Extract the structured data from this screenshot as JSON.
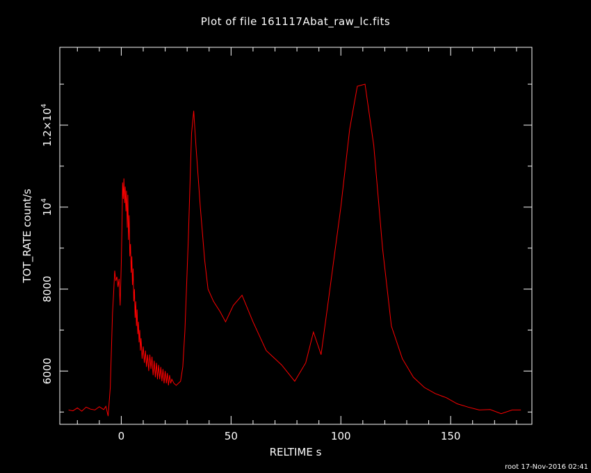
{
  "title": "Plot of file 161117Abat_raw_lc.fits",
  "footer": "root 17-Nov-2016 02:41",
  "colors": {
    "background": "#000000",
    "axes": "#ffffff",
    "series": "#ff0000"
  },
  "chart_data": {
    "type": "line",
    "xlabel": "RELTIME  s",
    "ylabel": "TOT_RATE  count/s",
    "xlim": [
      -28,
      187
    ],
    "ylim": [
      4700,
      13900
    ],
    "xticks": [
      {
        "value": 0,
        "label": "0"
      },
      {
        "value": 50,
        "label": "50"
      },
      {
        "value": 100,
        "label": "100"
      },
      {
        "value": 150,
        "label": "150"
      }
    ],
    "yticks": [
      {
        "value": 6000,
        "label": "6000",
        "exp": ""
      },
      {
        "value": 8000,
        "label": "8000",
        "exp": ""
      },
      {
        "value": 10000,
        "label": "10",
        "exp": "4"
      },
      {
        "value": 12000,
        "label": "1.2×10",
        "exp": "4"
      }
    ],
    "x_minor_step": 10,
    "y_minor_step": 1000,
    "series": [
      {
        "points": [
          [
            -24,
            5050
          ],
          [
            -22,
            5030
          ],
          [
            -20,
            5100
          ],
          [
            -18,
            5020
          ],
          [
            -16,
            5120
          ],
          [
            -14,
            5070
          ],
          [
            -12,
            5050
          ],
          [
            -10,
            5130
          ],
          [
            -8,
            5060
          ],
          [
            -7,
            5140
          ],
          [
            -6,
            4900
          ],
          [
            -5,
            5600
          ],
          [
            -4,
            7400
          ],
          [
            -3.5,
            7900
          ],
          [
            -3,
            8450
          ],
          [
            -2.5,
            8200
          ],
          [
            -2,
            8300
          ],
          [
            -1.5,
            8050
          ],
          [
            -1,
            8250
          ],
          [
            -0.5,
            7600
          ],
          [
            0,
            8600
          ],
          [
            0.3,
            9500
          ],
          [
            0.6,
            10600
          ],
          [
            0.9,
            10200
          ],
          [
            1.2,
            10700
          ],
          [
            1.5,
            10100
          ],
          [
            1.8,
            10500
          ],
          [
            2.1,
            9900
          ],
          [
            2.4,
            10400
          ],
          [
            2.7,
            9500
          ],
          [
            3.0,
            10300
          ],
          [
            3.3,
            9200
          ],
          [
            3.6,
            9800
          ],
          [
            3.9,
            8800
          ],
          [
            4.2,
            9100
          ],
          [
            4.5,
            8400
          ],
          [
            4.8,
            8800
          ],
          [
            5.1,
            8100
          ],
          [
            5.4,
            8500
          ],
          [
            5.7,
            7700
          ],
          [
            6.0,
            8000
          ],
          [
            6.3,
            7300
          ],
          [
            6.6,
            7700
          ],
          [
            6.9,
            7100
          ],
          [
            7.2,
            7500
          ],
          [
            7.5,
            6900
          ],
          [
            7.8,
            7200
          ],
          [
            8.1,
            6700
          ],
          [
            8.4,
            7000
          ],
          [
            8.7,
            6500
          ],
          [
            9.0,
            6800
          ],
          [
            9.5,
            6300
          ],
          [
            10.0,
            6600
          ],
          [
            10.5,
            6200
          ],
          [
            11.0,
            6500
          ],
          [
            11.5,
            6100
          ],
          [
            12.0,
            6400
          ],
          [
            12.5,
            6000
          ],
          [
            13.0,
            6400
          ],
          [
            13.5,
            6050
          ],
          [
            14.0,
            6350
          ],
          [
            14.5,
            5900
          ],
          [
            15.0,
            6250
          ],
          [
            15.5,
            5850
          ],
          [
            16.0,
            6200
          ],
          [
            16.5,
            5800
          ],
          [
            17.0,
            6150
          ],
          [
            17.5,
            5800
          ],
          [
            18.0,
            6100
          ],
          [
            18.5,
            5750
          ],
          [
            19.0,
            6050
          ],
          [
            19.5,
            5700
          ],
          [
            20.0,
            6000
          ],
          [
            20.5,
            5700
          ],
          [
            21.0,
            5950
          ],
          [
            21.5,
            5650
          ],
          [
            22.0,
            5900
          ],
          [
            22.5,
            5700
          ],
          [
            23.0,
            5800
          ],
          [
            24.0,
            5700
          ],
          [
            25.0,
            5650
          ],
          [
            26.0,
            5700
          ],
          [
            27.0,
            5750
          ],
          [
            28.0,
            6100
          ],
          [
            29.0,
            7000
          ],
          [
            30.5,
            9200
          ],
          [
            32.0,
            11800
          ],
          [
            33.0,
            12350
          ],
          [
            34.0,
            11500
          ],
          [
            36.0,
            10000
          ],
          [
            38.0,
            8700
          ],
          [
            39.5,
            8000
          ],
          [
            42.0,
            7700
          ],
          [
            45.0,
            7450
          ],
          [
            47.5,
            7200
          ],
          [
            51.0,
            7600
          ],
          [
            55.0,
            7850
          ],
          [
            60.0,
            7200
          ],
          [
            66.0,
            6500
          ],
          [
            73.0,
            6150
          ],
          [
            79.0,
            5750
          ],
          [
            84.0,
            6200
          ],
          [
            87.5,
            6950
          ],
          [
            91.0,
            6400
          ],
          [
            95.0,
            8000
          ],
          [
            100.0,
            10000
          ],
          [
            104.0,
            11900
          ],
          [
            107.5,
            12950
          ],
          [
            111.0,
            13000
          ],
          [
            115.0,
            11500
          ],
          [
            119.0,
            9000
          ],
          [
            123.0,
            7100
          ],
          [
            128.0,
            6300
          ],
          [
            133.0,
            5850
          ],
          [
            138.0,
            5600
          ],
          [
            143.0,
            5450
          ],
          [
            148.0,
            5350
          ],
          [
            153.0,
            5200
          ],
          [
            158.0,
            5120
          ],
          [
            163.0,
            5050
          ],
          [
            168.0,
            5060
          ],
          [
            173.0,
            4960
          ],
          [
            178.0,
            5050
          ],
          [
            182.0,
            5050
          ]
        ]
      }
    ]
  }
}
